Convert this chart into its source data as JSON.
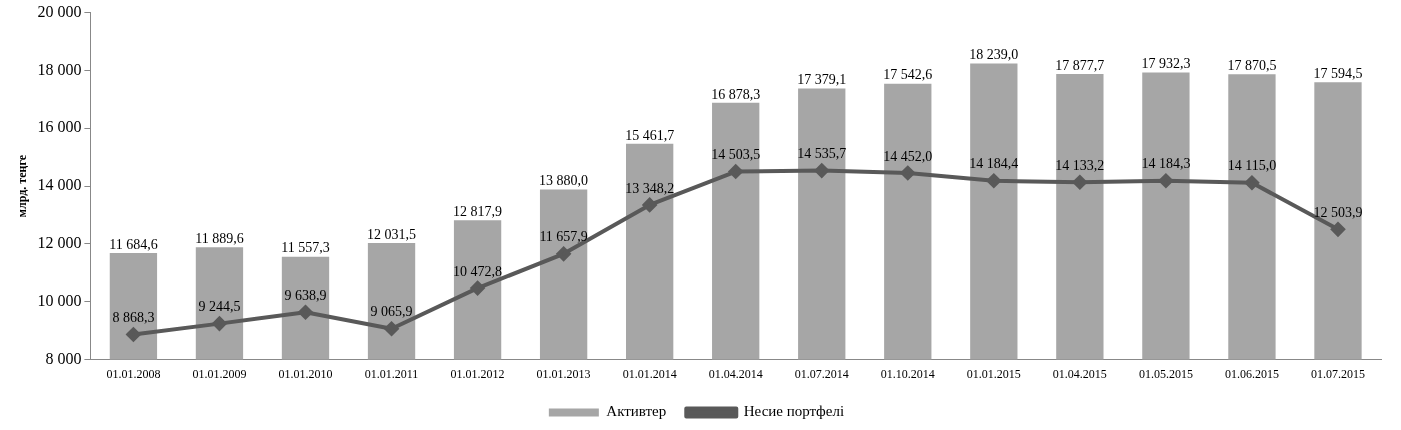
{
  "chart_data": {
    "type": "bar",
    "ylabel": "млрд. теңге",
    "categories": [
      "01.01.2008",
      "01.01.2009",
      "01.01.2010",
      "01.01.2011",
      "01.01.2012",
      "01.01.2013",
      "01.01.2014",
      "01.04.2014",
      "01.07.2014",
      "01.10.2014",
      "01.01.2015",
      "01.04.2015",
      "01.05.2015",
      "01.06.2015",
      "01.07.2015"
    ],
    "series": [
      {
        "name": "Активтер",
        "color": "#a6a6a6",
        "values": [
          11684.6,
          11889.6,
          11557.3,
          12031.5,
          12817.9,
          13880.0,
          15461.7,
          16878.3,
          17379.1,
          17542.6,
          18239.0,
          17877.7,
          17932.3,
          17870.5,
          17594.5
        ],
        "value_labels": [
          "11 684,6",
          "11 889,6",
          "11 557,3",
          "12 031,5",
          "12 817,9",
          "13 880,0",
          "15 461,7",
          "16 878,3",
          "17 379,1",
          "17 542,6",
          "18 239,0",
          "17 877,7",
          "17 932,3",
          "17 870,5",
          "17 594,5"
        ]
      },
      {
        "name": "Несие портфелі",
        "type": "line",
        "color": "#595959",
        "marker": "diamond",
        "values": [
          8868.3,
          9244.5,
          9638.9,
          9065.9,
          10472.8,
          11657.9,
          13348.2,
          14503.5,
          14535.7,
          14452.0,
          14184.4,
          14133.2,
          14184.3,
          14115.0,
          12503.9
        ],
        "value_labels": [
          "8 868,3",
          "9 244,5",
          "9 638,9",
          "9 065,9",
          "10 472,8",
          "11 657,9",
          "13 348,2",
          "14 503,5",
          "14 535,7",
          "14 452,0",
          "14 184,4",
          "14 133,2",
          "14 184,3",
          "14 115,0",
          "12 503,9"
        ]
      }
    ],
    "ylim": [
      8000,
      20000
    ],
    "yticks": [
      {
        "value": 8000,
        "label": "8 000"
      },
      {
        "value": 10000,
        "label": "10 000"
      },
      {
        "value": 12000,
        "label": "12 000"
      },
      {
        "value": 14000,
        "label": "14 000"
      },
      {
        "value": 16000,
        "label": "16 000"
      },
      {
        "value": 18000,
        "label": "18 000"
      },
      {
        "value": 20000,
        "label": "20 000"
      }
    ],
    "grid": false,
    "legend": "bottom"
  }
}
